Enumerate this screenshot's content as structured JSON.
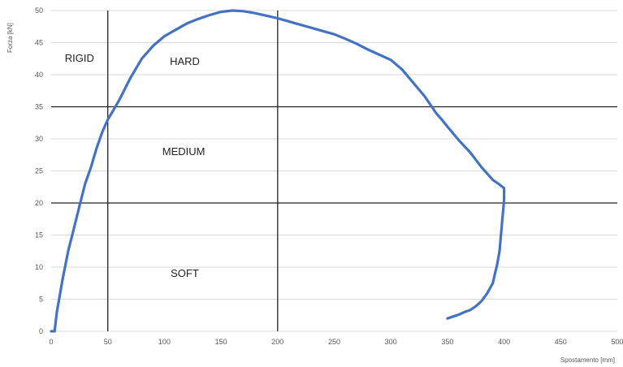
{
  "chart_data": {
    "type": "line",
    "title": "",
    "xlabel": "Spostamento [mm]",
    "ylabel": "Forza [kN]",
    "xlim": [
      0,
      500
    ],
    "ylim": [
      0,
      50
    ],
    "x_ticks": [
      0,
      50,
      100,
      150,
      200,
      250,
      300,
      350,
      400,
      450,
      500
    ],
    "y_ticks": [
      0,
      5,
      10,
      15,
      20,
      25,
      30,
      35,
      40,
      45,
      50
    ],
    "grid": "horizontal",
    "legend": "none",
    "series_color": "#4472C4",
    "series": [
      {
        "x": [
          0,
          3,
          5,
          10,
          15,
          20,
          25,
          30,
          35,
          40,
          45,
          50,
          55,
          60,
          70,
          80,
          90,
          100,
          110,
          120,
          130,
          140,
          150,
          160,
          170,
          180,
          190,
          200,
          210,
          220,
          230,
          240,
          250,
          260,
          270,
          280,
          290,
          300,
          310,
          320,
          330,
          340,
          345,
          350,
          360,
          370,
          380,
          390,
          395,
          400,
          400,
          399,
          398,
          397,
          396,
          394,
          392,
          390,
          385,
          380,
          375,
          370,
          365,
          360,
          355,
          350
        ],
        "y": [
          0,
          0,
          3,
          8,
          12.5,
          16,
          19.5,
          23,
          25.5,
          28.5,
          31,
          33,
          34.5,
          36,
          39.5,
          42.5,
          44.5,
          46,
          47,
          48,
          48.7,
          49.3,
          49.8,
          50,
          49.9,
          49.6,
          49.2,
          48.8,
          48.3,
          47.8,
          47.3,
          46.8,
          46.3,
          45.6,
          44.8,
          43.9,
          43.1,
          42.3,
          40.8,
          38.7,
          36.6,
          34,
          33,
          31.9,
          29.8,
          27.9,
          25.6,
          23.6,
          23,
          22.3,
          20.5,
          18.5,
          16.5,
          14.5,
          12.5,
          10.5,
          9,
          7.5,
          5.9,
          4.7,
          3.9,
          3.3,
          3,
          2.6,
          2.3,
          2
        ]
      }
    ],
    "reference_lines": {
      "vertical": [
        50,
        200
      ],
      "horizontal": [
        20,
        35
      ]
    },
    "annotations": [
      {
        "text": "RIGID",
        "x": 25,
        "y": 42
      },
      {
        "text": "HARD",
        "x": 118,
        "y": 41.5
      },
      {
        "text": "MEDIUM",
        "x": 117,
        "y": 27.5
      },
      {
        "text": "SOFT",
        "x": 118,
        "y": 8.5
      }
    ]
  }
}
